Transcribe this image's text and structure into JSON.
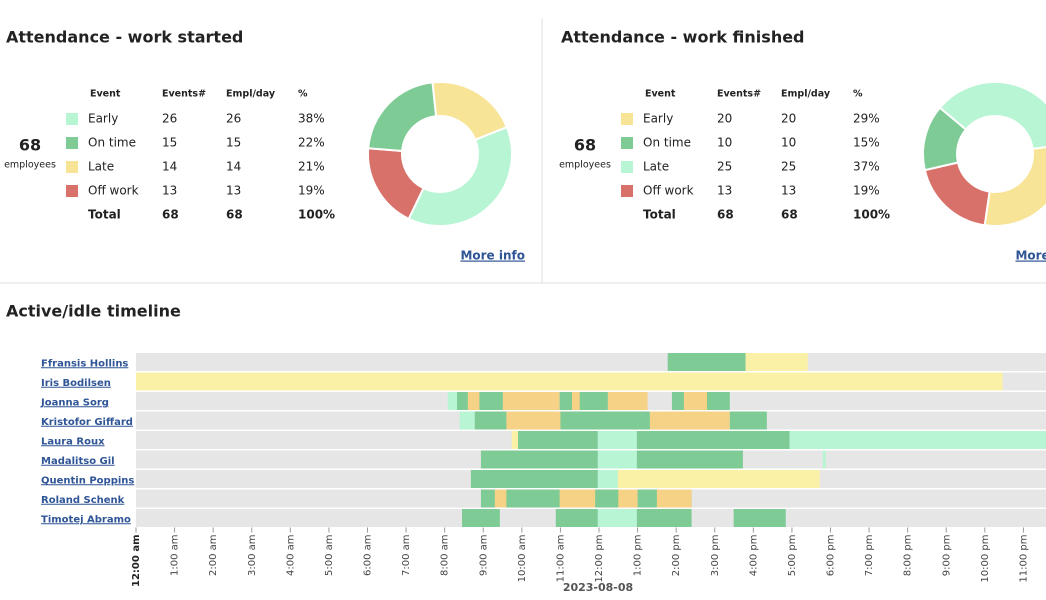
{
  "panels": [
    {
      "title": "Attendance - work started",
      "total_employees": 68,
      "employees_label": "employees",
      "headers": [
        "Event",
        "Events#",
        "Empl/day",
        "%"
      ],
      "rows": [
        {
          "event": "Early",
          "color": "#b8f5d4",
          "events": 26,
          "empl_day": 26,
          "percent": "38%"
        },
        {
          "event": "On time",
          "color": "#7ecb95",
          "events": 15,
          "empl_day": 15,
          "percent": "22%"
        },
        {
          "event": "Late",
          "color": "#f8e497",
          "events": 14,
          "empl_day": 14,
          "percent": "21%"
        },
        {
          "event": "Off work",
          "color": "#d8716a",
          "events": 13,
          "empl_day": 13,
          "percent": "19%"
        }
      ],
      "total": {
        "event": "Total",
        "events": 68,
        "empl_day": 68,
        "percent": "100%"
      },
      "link": "More info"
    },
    {
      "title": "Attendance - work finished",
      "total_employees": 68,
      "employees_label": "employees",
      "headers": [
        "Event",
        "Events#",
        "Empl/day",
        "%"
      ],
      "rows": [
        {
          "event": "Early",
          "color": "#f8e497",
          "events": 20,
          "empl_day": 20,
          "percent": "29%"
        },
        {
          "event": "On time",
          "color": "#7ecb95",
          "events": 10,
          "empl_day": 10,
          "percent": "15%"
        },
        {
          "event": "Late",
          "color": "#b8f5d4",
          "events": 25,
          "empl_day": 25,
          "percent": "37%"
        },
        {
          "event": "Off work",
          "color": "#d8716a",
          "events": 13,
          "empl_day": 13,
          "percent": "19%"
        }
      ],
      "total": {
        "event": "Total",
        "events": 68,
        "empl_day": 68,
        "percent": "100%"
      },
      "link": "More info"
    }
  ],
  "timeline": {
    "title": "Active/idle timeline",
    "date": "2023-08-08",
    "xlim": [
      0,
      24
    ],
    "xticks": [
      {
        "value": 0,
        "label": "12:00 am"
      },
      {
        "value": 1,
        "label": "1:00 am"
      },
      {
        "value": 2,
        "label": "2:00 am"
      },
      {
        "value": 3,
        "label": "3:00 am"
      },
      {
        "value": 4,
        "label": "4:00 am"
      },
      {
        "value": 5,
        "label": "5:00 am"
      },
      {
        "value": 6,
        "label": "6:00 am"
      },
      {
        "value": 7,
        "label": "7:00 am"
      },
      {
        "value": 8,
        "label": "8:00 am"
      },
      {
        "value": 9,
        "label": "9:00 am"
      },
      {
        "value": 10,
        "label": "10:00 am"
      },
      {
        "value": 11,
        "label": "11:00 am"
      },
      {
        "value": 12,
        "label": "12:00 pm"
      },
      {
        "value": 13,
        "label": "1:00 pm"
      },
      {
        "value": 14,
        "label": "2:00 pm"
      },
      {
        "value": 15,
        "label": "3:00 pm"
      },
      {
        "value": 16,
        "label": "4:00 pm"
      },
      {
        "value": 17,
        "label": "5:00 pm"
      },
      {
        "value": 18,
        "label": "6:00 pm"
      },
      {
        "value": 19,
        "label": "7:00 pm"
      },
      {
        "value": 20,
        "label": "8:00 pm"
      },
      {
        "value": 21,
        "label": "9:00 pm"
      },
      {
        "value": 22,
        "label": "10:00 pm"
      },
      {
        "value": 23,
        "label": "11:00 pm"
      }
    ],
    "rows": [
      {
        "name": "Ffransis Hollins",
        "segments": [
          {
            "start": 13.78,
            "end": 15.8,
            "color": "#7ecb95"
          },
          {
            "start": 15.8,
            "end": 17.41,
            "color": "#fbf1a6"
          }
        ]
      },
      {
        "name": "Iris Bodilsen",
        "segments": [
          {
            "start": 0,
            "end": 22.46,
            "color": "#fbf1a6"
          }
        ]
      },
      {
        "name": "Joanna Sorg",
        "segments": [
          {
            "start": 8.08,
            "end": 8.32,
            "color": "#b8f5d4"
          },
          {
            "start": 8.32,
            "end": 9.51,
            "color": "#7ecb95"
          },
          {
            "start": 8.6,
            "end": 8.9,
            "color": "#f6d287"
          },
          {
            "start": 9.51,
            "end": 10.98,
            "color": "#f6d287"
          },
          {
            "start": 10.98,
            "end": 12.23,
            "color": "#7ecb95"
          },
          {
            "start": 11.3,
            "end": 11.5,
            "color": "#f6d287"
          },
          {
            "start": 12.23,
            "end": 13.26,
            "color": "#f6d287"
          },
          {
            "start": 13.89,
            "end": 15.39,
            "color": "#7ecb95"
          },
          {
            "start": 14.2,
            "end": 14.8,
            "color": "#f6d287"
          }
        ]
      },
      {
        "name": "Kristofor Giffard",
        "segments": [
          {
            "start": 8.39,
            "end": 8.78,
            "color": "#b8f5d4"
          },
          {
            "start": 8.78,
            "end": 13.32,
            "color": "#7ecb95"
          },
          {
            "start": 9.6,
            "end": 11.0,
            "color": "#f6d287"
          },
          {
            "start": 13.32,
            "end": 15.39,
            "color": "#f6d287"
          },
          {
            "start": 15.39,
            "end": 16.35,
            "color": "#7ecb95"
          }
        ]
      },
      {
        "name": "Laura Roux",
        "segments": [
          {
            "start": 9.74,
            "end": 9.9,
            "color": "#fbf1a6"
          },
          {
            "start": 9.9,
            "end": 11.97,
            "color": "#7ecb95"
          },
          {
            "start": 11.97,
            "end": 12.98,
            "color": "#b8f5d4"
          },
          {
            "start": 12.98,
            "end": 16.94,
            "color": "#7ecb95"
          },
          {
            "start": 16.94,
            "end": 24,
            "color": "#b8f5d4"
          }
        ]
      },
      {
        "name": "Madalitso Gil",
        "segments": [
          {
            "start": 8.94,
            "end": 11.97,
            "color": "#7ecb95"
          },
          {
            "start": 11.97,
            "end": 12.98,
            "color": "#b8f5d4"
          },
          {
            "start": 12.98,
            "end": 15.73,
            "color": "#7ecb95"
          },
          {
            "start": 17.8,
            "end": 17.88,
            "color": "#b8f5d4"
          }
        ]
      },
      {
        "name": "Quentin Poppins",
        "segments": [
          {
            "start": 8.68,
            "end": 11.97,
            "color": "#7ecb95"
          },
          {
            "start": 11.97,
            "end": 12.49,
            "color": "#b8f5d4"
          },
          {
            "start": 12.49,
            "end": 17.72,
            "color": "#fbf1a6"
          }
        ]
      },
      {
        "name": "Roland Schenk",
        "segments": [
          {
            "start": 8.94,
            "end": 14.4,
            "color": "#7ecb95"
          },
          {
            "start": 9.3,
            "end": 9.6,
            "color": "#f6d287"
          },
          {
            "start": 10.98,
            "end": 11.9,
            "color": "#f6d287"
          },
          {
            "start": 12.5,
            "end": 13.0,
            "color": "#f6d287"
          },
          {
            "start": 13.5,
            "end": 14.4,
            "color": "#f6d287"
          }
        ]
      },
      {
        "name": "Timotej Abramo",
        "segments": [
          {
            "start": 8.45,
            "end": 9.43,
            "color": "#7ecb95"
          },
          {
            "start": 10.88,
            "end": 11.97,
            "color": "#7ecb95"
          },
          {
            "start": 11.97,
            "end": 12.98,
            "color": "#b8f5d4"
          },
          {
            "start": 12.98,
            "end": 14.4,
            "color": "#7ecb95"
          },
          {
            "start": 15.49,
            "end": 16.84,
            "color": "#7ecb95"
          }
        ]
      }
    ]
  }
}
